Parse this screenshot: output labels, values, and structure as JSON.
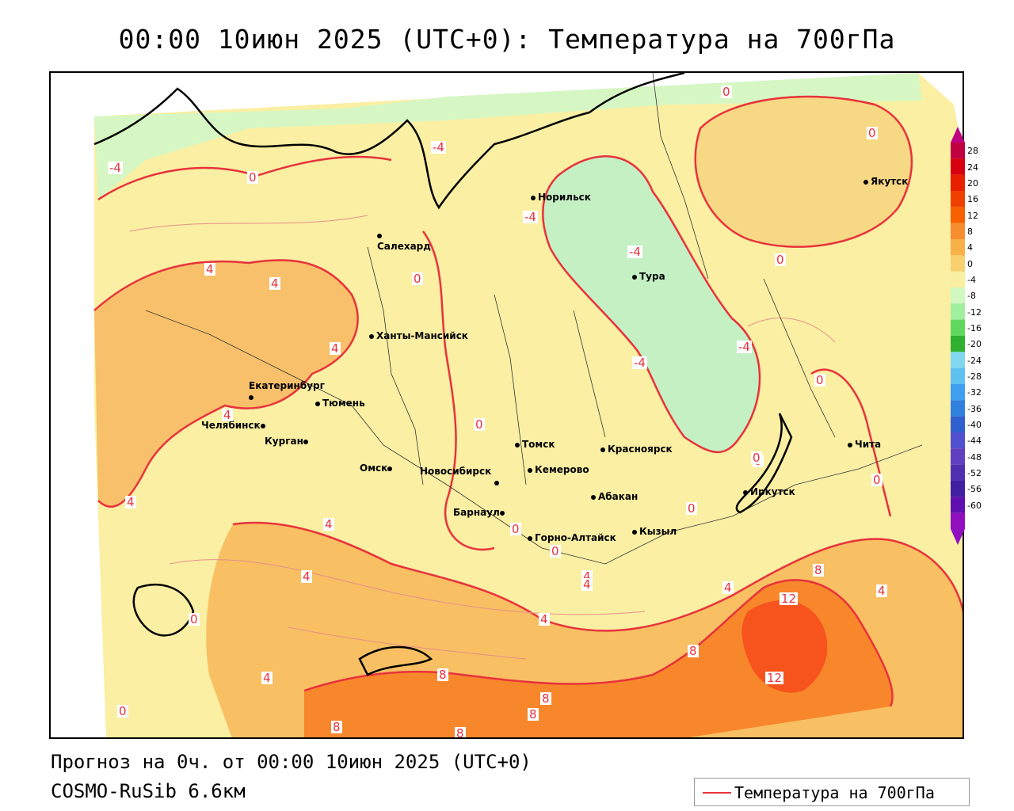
{
  "title": "00:00 10июн 2025 (UTC+0): Температура на 700гПа",
  "footer": {
    "forecast": "Прогноз на 0ч. от 00:00 10июн 2025 (UTC+0)",
    "model": "COSMO-RuSib 6.6км"
  },
  "legend": {
    "label": "Температура на 700гПа",
    "line_color": "#e8323c"
  },
  "colorbar": {
    "ticks": [
      "28",
      "24",
      "20",
      "16",
      "12",
      "8",
      "4",
      "0",
      "-4",
      "-8",
      "-12",
      "-16",
      "-20",
      "-24",
      "-28",
      "-32",
      "-36",
      "-40",
      "-44",
      "-48",
      "-52",
      "-56",
      "-60"
    ],
    "colors": [
      "#c00040",
      "#d80010",
      "#e82000",
      "#f04000",
      "#f86000",
      "#f88c30",
      "#f8b048",
      "#f8d070",
      "#f8f0a0",
      "#d0f8c0",
      "#a0f0a0",
      "#60d860",
      "#30b030",
      "#80d8f0",
      "#60c0f0",
      "#40a0f0",
      "#3080e0",
      "#3060d0",
      "#5050d0",
      "#6040c0",
      "#5030b0",
      "#4020a0",
      "#6010b0",
      "#9010c0"
    ]
  },
  "cities": [
    {
      "name": "Норильск"
    },
    {
      "name": "Якутск"
    },
    {
      "name": "Салехард"
    },
    {
      "name": "Тура"
    },
    {
      "name": "Ханты-Мансийск"
    },
    {
      "name": "Екатеринбург"
    },
    {
      "name": "Тюмень"
    },
    {
      "name": "Челябинск"
    },
    {
      "name": "Курган"
    },
    {
      "name": "Омск"
    },
    {
      "name": "Новосибирск"
    },
    {
      "name": "Томск"
    },
    {
      "name": "Кемерово"
    },
    {
      "name": "Красноярск"
    },
    {
      "name": "Абакан"
    },
    {
      "name": "Барнаул"
    },
    {
      "name": "Горно-Алтайск"
    },
    {
      "name": "Кызыл"
    },
    {
      "name": "Иркутск"
    },
    {
      "name": "Чита"
    }
  ],
  "contour_labels": [
    "0",
    "0",
    "-4",
    "0",
    "0",
    "-4",
    "-4",
    "0",
    "4",
    "4",
    "0",
    "4",
    "-4",
    "-4",
    "-4",
    "0",
    "4",
    "0",
    "4",
    "0",
    "0",
    "0",
    "0",
    "4",
    "4",
    "4",
    "0",
    "4",
    "4",
    "8",
    "4",
    "12",
    "8",
    "8",
    "8",
    "12",
    "8",
    "0",
    "4",
    "8",
    "4",
    "8",
    "0"
  ]
}
